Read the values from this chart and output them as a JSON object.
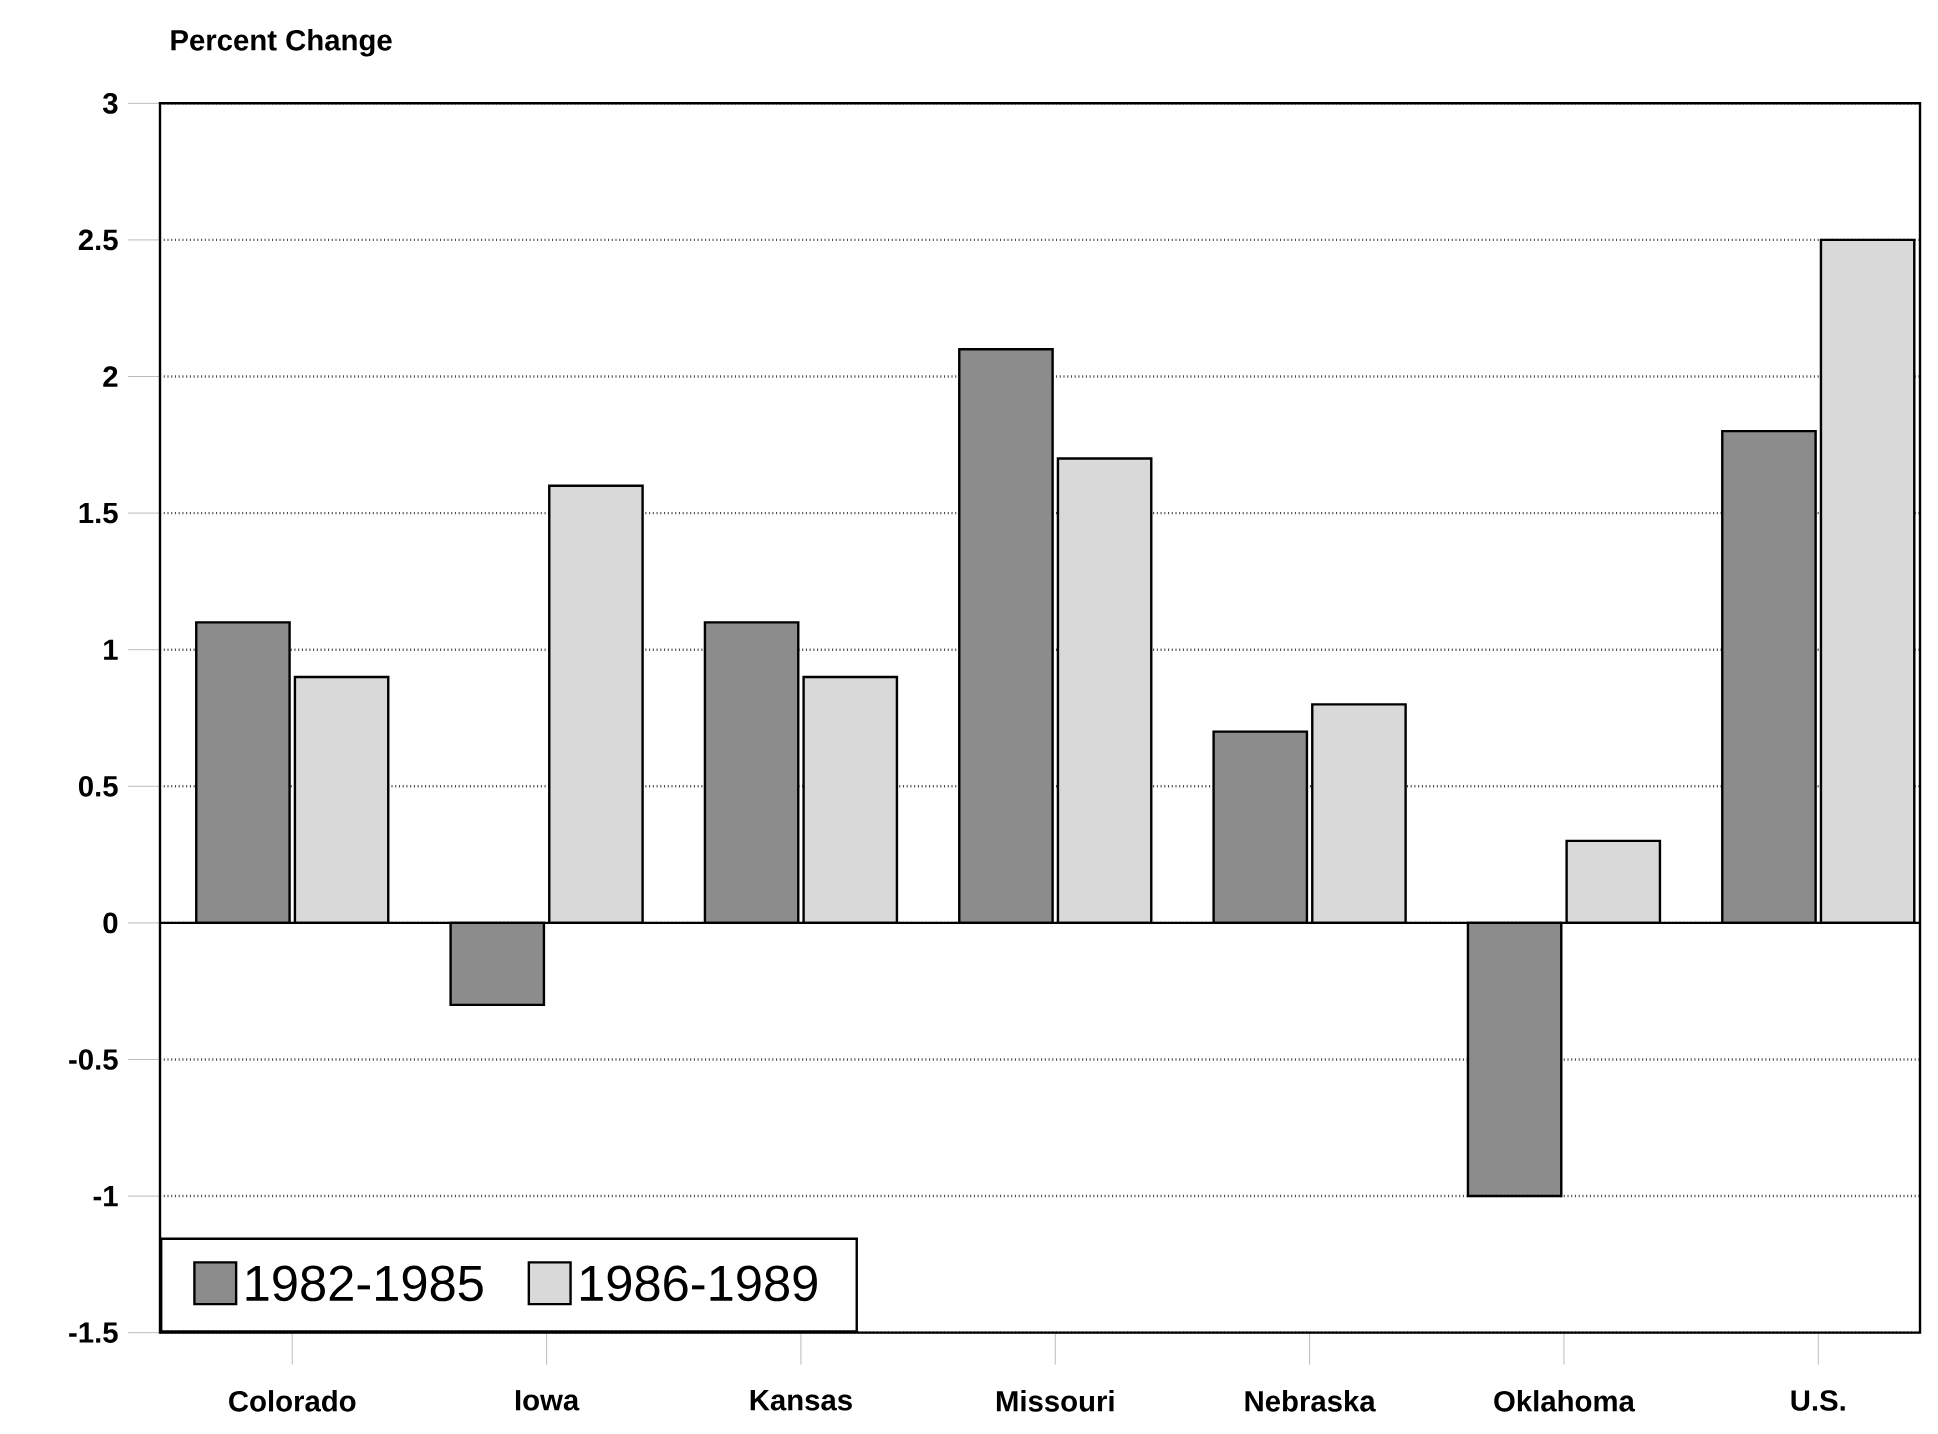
{
  "chart_data": {
    "type": "bar",
    "ylabel": "Percent Change",
    "categories": [
      "Colorado",
      "Iowa",
      "Kansas",
      "Missouri",
      "Nebraska",
      "Oklahoma",
      "U.S."
    ],
    "series": [
      {
        "name": "1982-1985",
        "color": "#8c8c8c",
        "values": [
          1.1,
          -0.3,
          1.1,
          2.1,
          0.7,
          -1.0,
          1.8
        ]
      },
      {
        "name": "1986-1989",
        "color": "#d9d9d9",
        "values": [
          0.9,
          1.6,
          0.9,
          1.7,
          0.8,
          0.3,
          2.5
        ]
      }
    ],
    "ylim": [
      -1.5,
      3
    ],
    "yticks": [
      -1.5,
      -1,
      -0.5,
      0,
      0.5,
      1,
      1.5,
      2,
      2.5,
      3
    ],
    "grid": "y",
    "legend": "bottom left"
  }
}
